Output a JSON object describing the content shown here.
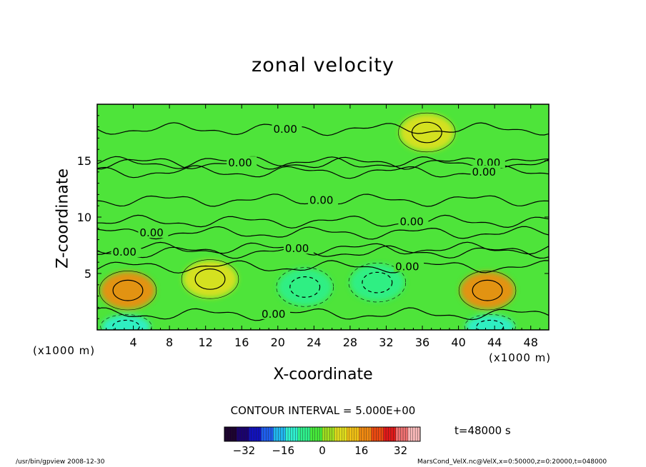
{
  "chart_data": {
    "type": "heatmap",
    "title": "zonal velocity",
    "xlabel": "X-coordinate",
    "ylabel": "Z-coordinate",
    "x_unit_label_left": "(x1000 m)",
    "x_unit_label_right": "(x1000 m)",
    "xlim": [
      0,
      50
    ],
    "ylim": [
      0,
      20
    ],
    "x_ticks": [
      4,
      8,
      12,
      16,
      20,
      24,
      28,
      32,
      36,
      40,
      44,
      48
    ],
    "y_ticks": [
      5,
      10,
      15
    ],
    "contour_labels": [
      {
        "text": "0.00",
        "x": 19.5,
        "z": 17.8
      },
      {
        "text": "0.00",
        "x": 14.5,
        "z": 14.8
      },
      {
        "text": "0.00",
        "x": 42.0,
        "z": 14.8
      },
      {
        "text": "0.00",
        "x": 41.5,
        "z": 14.0
      },
      {
        "text": "0.00",
        "x": 23.5,
        "z": 11.5
      },
      {
        "text": "0.00",
        "x": 33.5,
        "z": 9.6
      },
      {
        "text": "0.00",
        "x": 4.7,
        "z": 8.6
      },
      {
        "text": "0.00",
        "x": 1.7,
        "z": 6.9
      },
      {
        "text": "0.00",
        "x": 20.8,
        "z": 7.2
      },
      {
        "text": "0.00",
        "x": 33.0,
        "z": 5.6
      },
      {
        "text": "0.00",
        "x": 18.2,
        "z": 1.4
      }
    ],
    "extrema": [
      {
        "x": 3.4,
        "z": 3.5,
        "value": 16
      },
      {
        "x": 43.2,
        "z": 3.5,
        "value": 17
      },
      {
        "x": 23.0,
        "z": 3.8,
        "value": -6
      },
      {
        "x": 31.0,
        "z": 4.2,
        "value": -7
      },
      {
        "x": 3.2,
        "z": 0.3,
        "value": -14
      },
      {
        "x": 43.5,
        "z": 0.3,
        "value": -12
      },
      {
        "x": 12.5,
        "z": 4.5,
        "value": 9
      },
      {
        "x": 36.5,
        "z": 17.5,
        "value": 6
      }
    ],
    "contour_interval_text": "CONTOUR INTERVAL = 5.000E+00",
    "colorbar": {
      "range": [
        -40,
        40
      ],
      "ticks": [
        -32,
        -16,
        0,
        16,
        32
      ],
      "colors": [
        "#1c0030",
        "#1a0070",
        "#1010c0",
        "#1e5ef0",
        "#21b7f0",
        "#2ff0d0",
        "#2ef08c",
        "#46ea3a",
        "#a0e020",
        "#e3e01c",
        "#f5c314",
        "#f38a10",
        "#ee4a10",
        "#e21818",
        "#ee7070",
        "#f8b8b8"
      ]
    },
    "time_label": "t=48000 s"
  },
  "footer": {
    "left": "/usr/bin/gpview 2008-12-30",
    "right": "MarsCond_VelX.nc@VelX,x=0:50000,z=0:20000,t=048000"
  }
}
